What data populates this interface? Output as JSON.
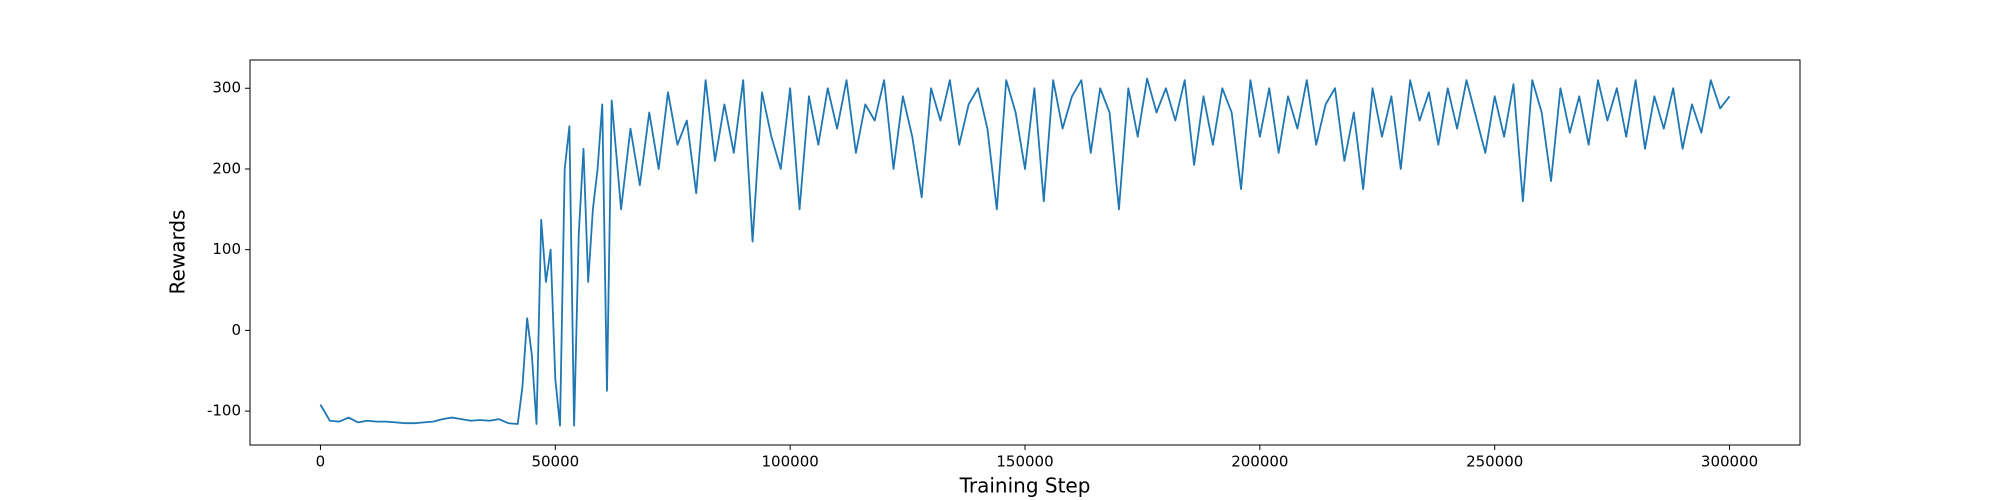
{
  "chart_data": {
    "type": "line",
    "x_label": "Training Step",
    "y_label": "Rewards",
    "xlim": [
      -15000,
      315000
    ],
    "xticks": [
      0,
      50000,
      100000,
      150000,
      200000,
      250000,
      300000
    ],
    "ylim": [
      -142,
      335
    ],
    "yticks": [
      -100,
      0,
      100,
      200,
      300
    ],
    "series": [
      {
        "color": "#1f77b4",
        "x": [
          0,
          2000,
          4000,
          6000,
          8000,
          10000,
          12000,
          14000,
          16000,
          18000,
          20000,
          22000,
          24000,
          26000,
          28000,
          30000,
          32000,
          34000,
          36000,
          38000,
          40000,
          42000,
          43000,
          44000,
          45000,
          46000,
          47000,
          48000,
          49000,
          50000,
          51000,
          52000,
          53000,
          54000,
          55000,
          56000,
          57000,
          58000,
          59000,
          60000,
          61000,
          62000,
          64000,
          66000,
          68000,
          70000,
          72000,
          74000,
          76000,
          78000,
          80000,
          82000,
          84000,
          86000,
          88000,
          90000,
          92000,
          94000,
          96000,
          98000,
          100000,
          102000,
          104000,
          106000,
          108000,
          110000,
          112000,
          114000,
          116000,
          118000,
          120000,
          122000,
          124000,
          126000,
          128000,
          130000,
          132000,
          134000,
          136000,
          138000,
          140000,
          142000,
          144000,
          146000,
          148000,
          150000,
          152000,
          154000,
          156000,
          158000,
          160000,
          162000,
          164000,
          166000,
          168000,
          170000,
          172000,
          174000,
          176000,
          178000,
          180000,
          182000,
          184000,
          186000,
          188000,
          190000,
          192000,
          194000,
          196000,
          198000,
          200000,
          202000,
          204000,
          206000,
          208000,
          210000,
          212000,
          214000,
          216000,
          218000,
          220000,
          222000,
          224000,
          226000,
          228000,
          230000,
          232000,
          234000,
          236000,
          238000,
          240000,
          242000,
          244000,
          246000,
          248000,
          250000,
          252000,
          254000,
          256000,
          258000,
          260000,
          262000,
          264000,
          266000,
          268000,
          270000,
          272000,
          274000,
          276000,
          278000,
          280000,
          282000,
          284000,
          286000,
          288000,
          290000,
          292000,
          294000,
          296000,
          298000,
          300000
        ],
        "values": [
          -92,
          -112,
          -113,
          -108,
          -114,
          -112,
          -113,
          -113,
          -114,
          -115,
          -115,
          -114,
          -113,
          -110,
          -108,
          -110,
          -112,
          -111,
          -112,
          -110,
          -115,
          -116,
          -70,
          15,
          -30,
          -116,
          137,
          60,
          100,
          -60,
          -118,
          200,
          253,
          -118,
          120,
          225,
          60,
          150,
          200,
          280,
          -75,
          285,
          150,
          250,
          180,
          270,
          200,
          295,
          230,
          260,
          170,
          310,
          210,
          280,
          220,
          310,
          110,
          295,
          240,
          200,
          300,
          150,
          290,
          230,
          300,
          250,
          310,
          220,
          280,
          260,
          310,
          200,
          290,
          240,
          165,
          300,
          260,
          310,
          230,
          280,
          300,
          250,
          150,
          310,
          270,
          200,
          300,
          160,
          310,
          250,
          290,
          310,
          220,
          300,
          270,
          150,
          300,
          240,
          312,
          270,
          300,
          260,
          310,
          205,
          290,
          230,
          300,
          270,
          175,
          310,
          240,
          300,
          220,
          290,
          250,
          310,
          230,
          280,
          300,
          210,
          270,
          175,
          300,
          240,
          290,
          200,
          310,
          260,
          295,
          230,
          300,
          250,
          310,
          265,
          220,
          290,
          240,
          305,
          160,
          310,
          270,
          185,
          300,
          245,
          290,
          230,
          310,
          260,
          300,
          240,
          310,
          225,
          290,
          250,
          300,
          225,
          280,
          245,
          310,
          275,
          290
        ]
      }
    ]
  }
}
